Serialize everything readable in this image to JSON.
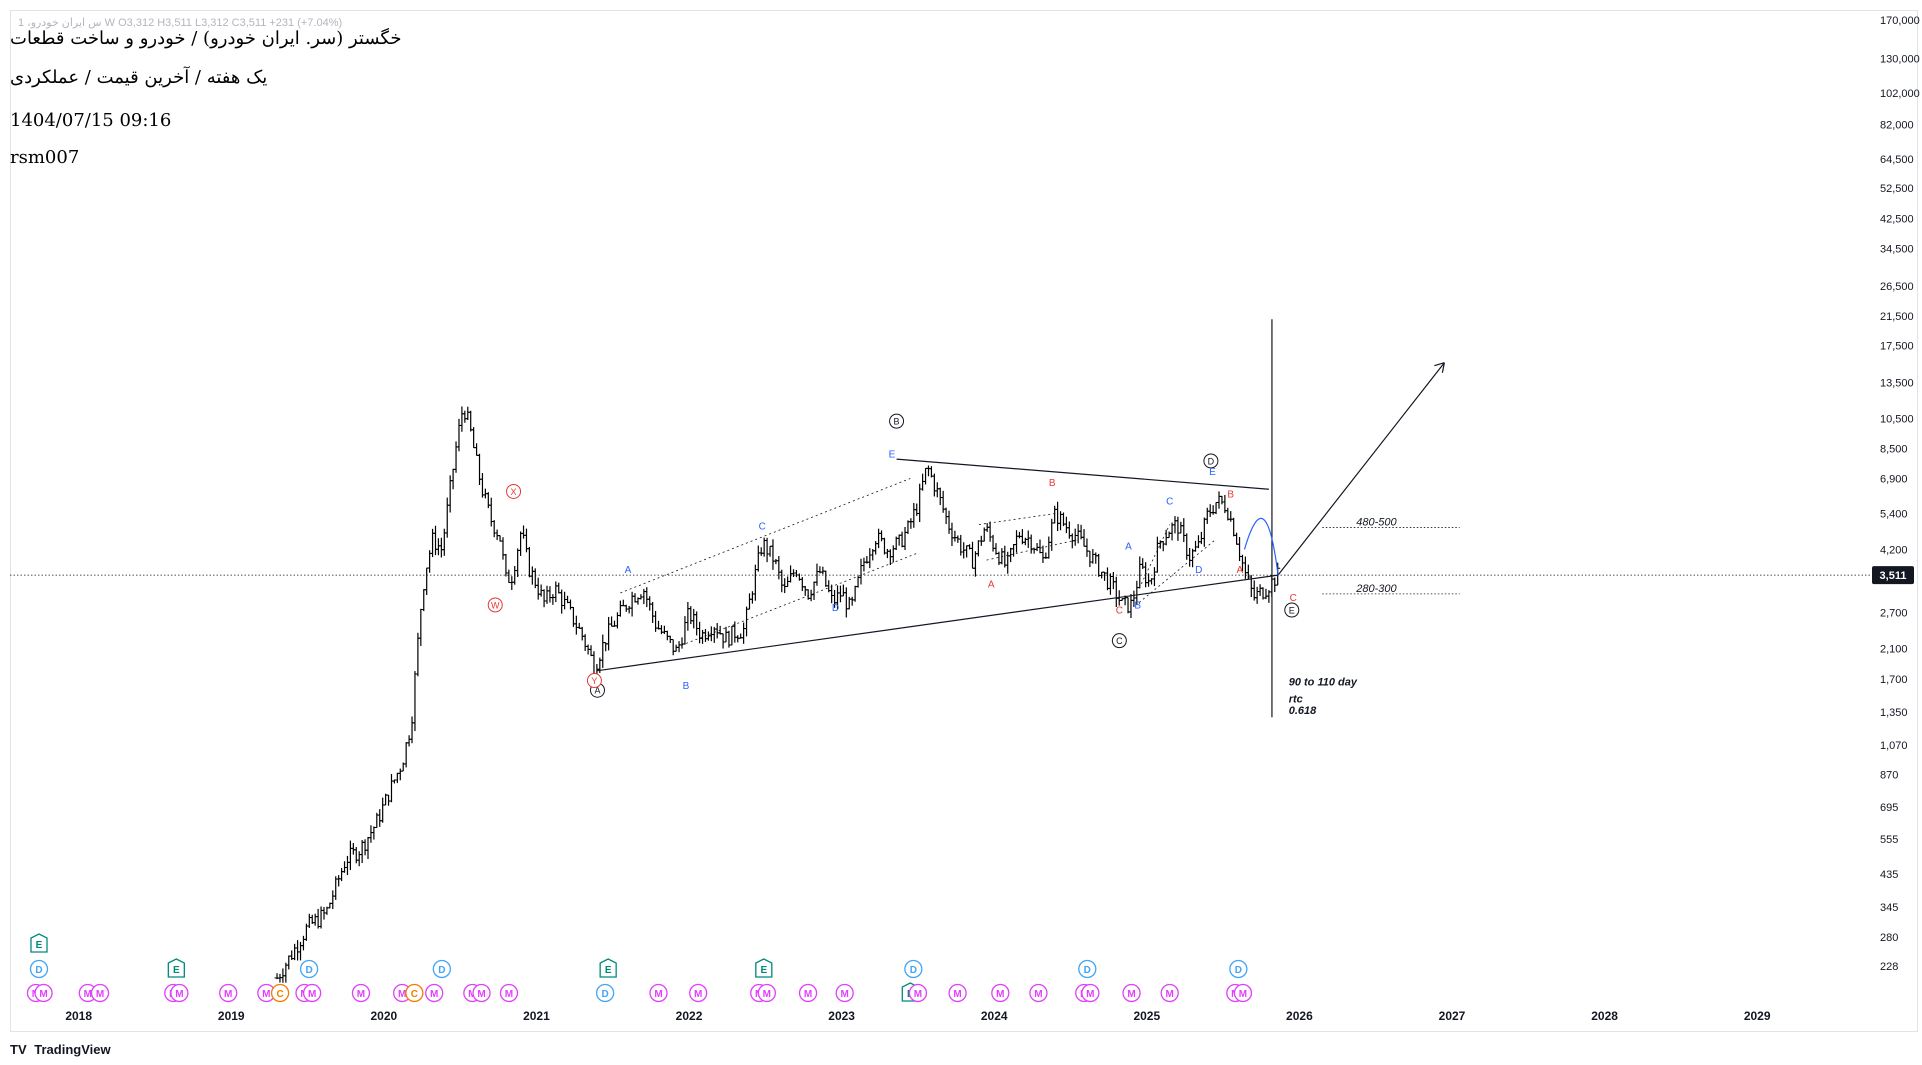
{
  "header": {
    "symbol_line": "خگستر (سر. ایران خودرو) / خودرو و ساخت قطعات",
    "timeframe_line": "یک هفته / آخرین قیمت / عملکردی",
    "datetime": "1404/07/15 09:16",
    "author": "rsm007",
    "ohlc_line": "1 ،س ایران خودرو W  O3,312  H3,511  L3,312  C3,511  +231 (+7.04%)"
  },
  "footer": {
    "brand": "TradingView",
    "logo": "TV"
  },
  "colors": {
    "candle": "#000000",
    "wave_blue": "#2962ff",
    "wave_red": "#e53935",
    "ann": "#e040fb",
    "earnings": "#00897b",
    "dividend": "#42a5f5",
    "split": "#f57c00",
    "price_label_bg": "#131722"
  },
  "chart_data": {
    "type": "ohlc",
    "scale": "log",
    "ylim": [
      180,
      180000
    ],
    "xlim": [
      2017.55,
      2029.7
    ],
    "last_price": 3511,
    "last_price_label": "3,511",
    "y_ticks": [
      {
        "v": 170000,
        "label": "170,000"
      },
      {
        "v": 130000,
        "label": "130,000"
      },
      {
        "v": 102000,
        "label": "102,000"
      },
      {
        "v": 82000,
        "label": "82,000"
      },
      {
        "v": 64500,
        "label": "64,500"
      },
      {
        "v": 52500,
        "label": "52,500"
      },
      {
        "v": 42500,
        "label": "42,500"
      },
      {
        "v": 34500,
        "label": "34,500"
      },
      {
        "v": 26500,
        "label": "26,500"
      },
      {
        "v": 21500,
        "label": "21,500"
      },
      {
        "v": 17500,
        "label": "17,500"
      },
      {
        "v": 13500,
        "label": "13,500"
      },
      {
        "v": 10500,
        "label": "10,500"
      },
      {
        "v": 8500,
        "label": "8,500"
      },
      {
        "v": 6900,
        "label": "6,900"
      },
      {
        "v": 5400,
        "label": "5,400"
      },
      {
        "v": 4200,
        "label": "4,200"
      },
      {
        "v": 2700,
        "label": "2,700"
      },
      {
        "v": 2100,
        "label": "2,100"
      },
      {
        "v": 1700,
        "label": "1,700"
      },
      {
        "v": 1350,
        "label": "1,350"
      },
      {
        "v": 1070,
        "label": "1,070"
      },
      {
        "v": 870,
        "label": "870"
      },
      {
        "v": 695,
        "label": "695"
      },
      {
        "v": 555,
        "label": "555"
      },
      {
        "v": 435,
        "label": "435"
      },
      {
        "v": 345,
        "label": "345"
      },
      {
        "v": 280,
        "label": "280"
      },
      {
        "v": 228,
        "label": "228"
      }
    ],
    "x_ticks": [
      {
        "t": 2018,
        "label": "2018"
      },
      {
        "t": 2019,
        "label": "2019"
      },
      {
        "t": 2020,
        "label": "2020"
      },
      {
        "t": 2021,
        "label": "2021"
      },
      {
        "t": 2022,
        "label": "2022"
      },
      {
        "t": 2023,
        "label": "2023"
      },
      {
        "t": 2024,
        "label": "2024"
      },
      {
        "t": 2025,
        "label": "2025"
      },
      {
        "t": 2026,
        "label": "2026"
      },
      {
        "t": 2027,
        "label": "2027"
      },
      {
        "t": 2028,
        "label": "2028"
      },
      {
        "t": 2029,
        "label": "2029"
      }
    ],
    "price_path": [
      [
        2019.3,
        210
      ],
      [
        2019.4,
        250
      ],
      [
        2019.5,
        300
      ],
      [
        2019.62,
        330
      ],
      [
        2019.75,
        480
      ],
      [
        2019.85,
        520
      ],
      [
        2019.95,
        620
      ],
      [
        2020.05,
        800
      ],
      [
        2020.12,
        950
      ],
      [
        2020.18,
        1250
      ],
      [
        2020.24,
        2750
      ],
      [
        2020.27,
        3600
      ],
      [
        2020.32,
        4500
      ],
      [
        2020.38,
        4200
      ],
      [
        2020.43,
        6200
      ],
      [
        2020.48,
        9000
      ],
      [
        2020.52,
        11500
      ],
      [
        2020.56,
        10000
      ],
      [
        2020.6,
        8000
      ],
      [
        2020.64,
        6500
      ],
      [
        2020.7,
        5200
      ],
      [
        2020.76,
        4600
      ],
      [
        2020.8,
        3400
      ],
      [
        2020.84,
        3500
      ],
      [
        2020.9,
        4800
      ],
      [
        2020.95,
        3700
      ],
      [
        2021.0,
        3300
      ],
      [
        2021.05,
        2900
      ],
      [
        2021.12,
        3200
      ],
      [
        2021.2,
        2800
      ],
      [
        2021.3,
        2300
      ],
      [
        2021.38,
        1850
      ],
      [
        2021.46,
        2300
      ],
      [
        2021.54,
        2650
      ],
      [
        2021.62,
        3000
      ],
      [
        2021.7,
        3200
      ],
      [
        2021.78,
        2500
      ],
      [
        2021.85,
        2250
      ],
      [
        2021.92,
        2050
      ],
      [
        2022.0,
        2700
      ],
      [
        2022.08,
        2300
      ],
      [
        2022.16,
        2500
      ],
      [
        2022.24,
        2250
      ],
      [
        2022.3,
        2350
      ],
      [
        2022.36,
        2400
      ],
      [
        2022.42,
        3300
      ],
      [
        2022.48,
        4400
      ],
      [
        2022.56,
        3900
      ],
      [
        2022.62,
        3100
      ],
      [
        2022.7,
        3700
      ],
      [
        2022.78,
        3100
      ],
      [
        2022.86,
        3600
      ],
      [
        2022.94,
        2900
      ],
      [
        2023.0,
        3100
      ],
      [
        2023.06,
        2750
      ],
      [
        2023.14,
        3800
      ],
      [
        2023.22,
        4600
      ],
      [
        2023.3,
        4200
      ],
      [
        2023.38,
        4400
      ],
      [
        2023.44,
        4900
      ],
      [
        2023.5,
        5800
      ],
      [
        2023.56,
        7500
      ],
      [
        2023.62,
        6400
      ],
      [
        2023.7,
        5000
      ],
      [
        2023.78,
        4300
      ],
      [
        2023.86,
        3900
      ],
      [
        2023.94,
        4900
      ],
      [
        2024.0,
        4300
      ],
      [
        2024.08,
        3700
      ],
      [
        2024.16,
        4700
      ],
      [
        2024.24,
        4500
      ],
      [
        2024.32,
        3900
      ],
      [
        2024.4,
        5400
      ],
      [
        2024.46,
        5000
      ],
      [
        2024.54,
        4600
      ],
      [
        2024.62,
        4100
      ],
      [
        2024.7,
        3600
      ],
      [
        2024.78,
        3200
      ],
      [
        2024.84,
        2850
      ],
      [
        2024.9,
        2850
      ],
      [
        2024.96,
        3700
      ],
      [
        2025.02,
        3300
      ],
      [
        2025.08,
        4400
      ],
      [
        2025.14,
        4800
      ],
      [
        2025.2,
        5000
      ],
      [
        2025.28,
        4000
      ],
      [
        2025.34,
        4300
      ],
      [
        2025.4,
        5400
      ],
      [
        2025.46,
        5900
      ],
      [
        2025.52,
        5700
      ],
      [
        2025.58,
        4700
      ],
      [
        2025.64,
        3600
      ],
      [
        2025.7,
        3000
      ],
      [
        2025.78,
        3200
      ],
      [
        2025.86,
        3511
      ]
    ],
    "waves": [
      {
        "t": 2021.4,
        "v": 1570,
        "label": "A",
        "kind": "major"
      },
      {
        "t": 2023.36,
        "v": 10300,
        "label": "B",
        "kind": "major"
      },
      {
        "t": 2024.82,
        "v": 2220,
        "label": "C",
        "kind": "major"
      },
      {
        "t": 2025.42,
        "v": 7800,
        "label": "D",
        "kind": "major"
      },
      {
        "t": 2025.95,
        "v": 2750,
        "label": "E",
        "kind": "major"
      },
      {
        "t": 2020.73,
        "v": 2850,
        "label": "W",
        "kind": "red-circle"
      },
      {
        "t": 2020.85,
        "v": 6300,
        "label": "X",
        "kind": "red-circle"
      },
      {
        "t": 2021.38,
        "v": 1680,
        "label": "Y",
        "kind": "red-circle"
      },
      {
        "t": 2021.6,
        "v": 3650,
        "label": "A",
        "kind": "blue"
      },
      {
        "t": 2021.98,
        "v": 1620,
        "label": "B",
        "kind": "blue"
      },
      {
        "t": 2022.48,
        "v": 4950,
        "label": "C",
        "kind": "blue"
      },
      {
        "t": 2022.96,
        "v": 2800,
        "label": "D",
        "kind": "blue"
      },
      {
        "t": 2023.33,
        "v": 8200,
        "label": "E",
        "kind": "blue"
      },
      {
        "t": 2024.38,
        "v": 6700,
        "label": "B",
        "kind": "red"
      },
      {
        "t": 2023.98,
        "v": 3300,
        "label": "A",
        "kind": "red"
      },
      {
        "t": 2024.82,
        "v": 2750,
        "label": "C",
        "kind": "red"
      },
      {
        "t": 2024.88,
        "v": 4300,
        "label": "A",
        "kind": "blue"
      },
      {
        "t": 2024.94,
        "v": 2850,
        "label": "B",
        "kind": "blue"
      },
      {
        "t": 2025.15,
        "v": 5900,
        "label": "C",
        "kind": "blue"
      },
      {
        "t": 2025.34,
        "v": 3650,
        "label": "D",
        "kind": "blue"
      },
      {
        "t": 2025.43,
        "v": 7250,
        "label": "E",
        "kind": "blue"
      },
      {
        "t": 2025.55,
        "v": 6200,
        "label": "B",
        "kind": "red"
      },
      {
        "t": 2025.61,
        "v": 3650,
        "label": "A",
        "kind": "red"
      },
      {
        "t": 2025.96,
        "v": 3000,
        "label": "C",
        "kind": "red"
      }
    ],
    "levels": [
      {
        "t1": 2026.15,
        "t2": 2027.05,
        "v": 4900,
        "label": "480-500"
      },
      {
        "t1": 2026.15,
        "t2": 2027.05,
        "v": 3080,
        "label": "280-300"
      }
    ],
    "annotations": [
      {
        "t": 2025.93,
        "v": 1620,
        "text": "90 to 110 day"
      },
      {
        "t": 2025.93,
        "v": 1440,
        "text": "rtc"
      },
      {
        "t": 2025.93,
        "v": 1330,
        "text": "0.618"
      }
    ],
    "events": [
      {
        "t": 2017.72,
        "lane": 0,
        "type": "M"
      },
      {
        "t": 2017.77,
        "lane": 0,
        "type": "M"
      },
      {
        "t": 2017.74,
        "lane": 1,
        "type": "D"
      },
      {
        "t": 2017.74,
        "lane": 2,
        "type": "E"
      },
      {
        "t": 2018.06,
        "lane": 0,
        "type": "M"
      },
      {
        "t": 2018.14,
        "lane": 0,
        "type": "M"
      },
      {
        "t": 2018.62,
        "lane": 0,
        "type": "M"
      },
      {
        "t": 2018.66,
        "lane": 0,
        "type": "M"
      },
      {
        "t": 2018.64,
        "lane": 1,
        "type": "E"
      },
      {
        "t": 2018.98,
        "lane": 0,
        "type": "M"
      },
      {
        "t": 2019.23,
        "lane": 0,
        "type": "M"
      },
      {
        "t": 2019.32,
        "lane": 0,
        "type": "C"
      },
      {
        "t": 2019.48,
        "lane": 0,
        "type": "M"
      },
      {
        "t": 2019.53,
        "lane": 0,
        "type": "M"
      },
      {
        "t": 2019.51,
        "lane": 1,
        "type": "D"
      },
      {
        "t": 2019.85,
        "lane": 0,
        "type": "M"
      },
      {
        "t": 2020.12,
        "lane": 0,
        "type": "M"
      },
      {
        "t": 2020.2,
        "lane": 0,
        "type": "C"
      },
      {
        "t": 2020.33,
        "lane": 0,
        "type": "M"
      },
      {
        "t": 2020.38,
        "lane": 1,
        "type": "D"
      },
      {
        "t": 2020.58,
        "lane": 0,
        "type": "M"
      },
      {
        "t": 2020.64,
        "lane": 0,
        "type": "M"
      },
      {
        "t": 2020.82,
        "lane": 0,
        "type": "M"
      },
      {
        "t": 2021.45,
        "lane": 0,
        "type": "D"
      },
      {
        "t": 2021.47,
        "lane": 1,
        "type": "E"
      },
      {
        "t": 2021.8,
        "lane": 0,
        "type": "M"
      },
      {
        "t": 2022.06,
        "lane": 0,
        "type": "M"
      },
      {
        "t": 2022.46,
        "lane": 0,
        "type": "M"
      },
      {
        "t": 2022.51,
        "lane": 0,
        "type": "M"
      },
      {
        "t": 2022.49,
        "lane": 1,
        "type": "E"
      },
      {
        "t": 2022.78,
        "lane": 0,
        "type": "M"
      },
      {
        "t": 2023.02,
        "lane": 0,
        "type": "M"
      },
      {
        "t": 2023.45,
        "lane": 0,
        "type": "E"
      },
      {
        "t": 2023.5,
        "lane": 0,
        "type": "M"
      },
      {
        "t": 2023.47,
        "lane": 1,
        "type": "D"
      },
      {
        "t": 2023.76,
        "lane": 0,
        "type": "M"
      },
      {
        "t": 2024.04,
        "lane": 0,
        "type": "M"
      },
      {
        "t": 2024.29,
        "lane": 0,
        "type": "M"
      },
      {
        "t": 2024.59,
        "lane": 0,
        "type": "M"
      },
      {
        "t": 2024.63,
        "lane": 0,
        "type": "M"
      },
      {
        "t": 2024.61,
        "lane": 1,
        "type": "D"
      },
      {
        "t": 2024.9,
        "lane": 0,
        "type": "M"
      },
      {
        "t": 2025.15,
        "lane": 0,
        "type": "M"
      },
      {
        "t": 2025.58,
        "lane": 0,
        "type": "M"
      },
      {
        "t": 2025.63,
        "lane": 0,
        "type": "M"
      },
      {
        "t": 2025.6,
        "lane": 1,
        "type": "D"
      }
    ]
  }
}
